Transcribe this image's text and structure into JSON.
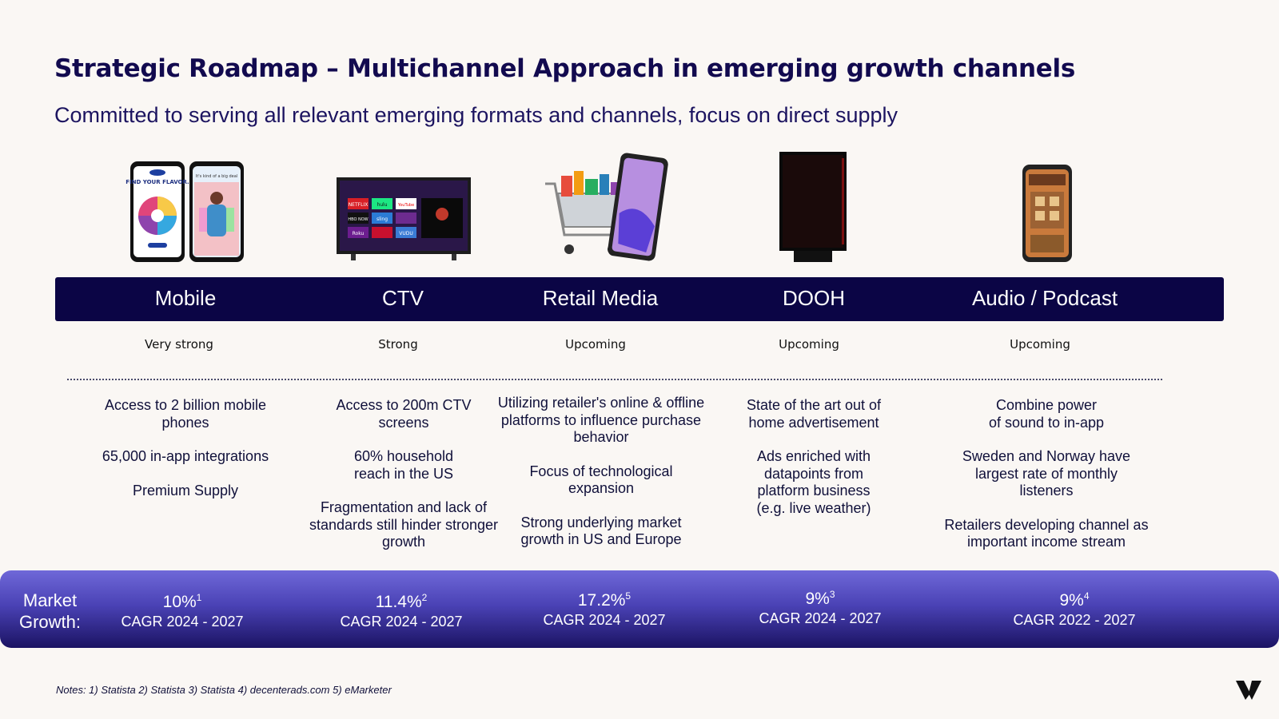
{
  "title": "Strategic Roadmap – Multichannel Approach in emerging growth channels",
  "subtitle": "Committed to serving all relevant emerging formats and channels, focus on direct supply",
  "channels": [
    {
      "label": "Mobile",
      "strength": "Very strong",
      "desc": [
        "Access to 2 billion mobile phones",
        "65,000 in-app integrations",
        "Premium Supply"
      ],
      "growth_value": "10%",
      "growth_note": "1",
      "growth_period": "CAGR 2024 - 2027",
      "image_text": [
        "FIND YOUR FLAVOR.",
        "It's kind of a big deal"
      ]
    },
    {
      "label": "CTV",
      "strength": "Strong",
      "desc": [
        "Access to 200m CTV screens",
        "60% household reach in the US",
        "Fragmentation and lack of standards still hinder stronger growth"
      ],
      "growth_value": "11.4%",
      "growth_note": "2",
      "growth_period": "CAGR 2024 - 2027",
      "image_text": [
        "NETFLIX",
        "hulu",
        "YouTube",
        "HBO NOW",
        "sling",
        "Roku",
        "VUDU"
      ]
    },
    {
      "label": "Retail Media",
      "strength": "Upcoming",
      "desc": [
        "Utilizing retailer's online & offline platforms to influence purchase behavior",
        "Focus of technological expansion",
        "Strong underlying market growth in US and Europe"
      ],
      "growth_value": "17.2%",
      "growth_note": "5",
      "growth_period": "CAGR 2024 - 2027"
    },
    {
      "label": "DOOH",
      "strength": "Upcoming",
      "desc": [
        "State of the art out of home advertisement",
        "Ads enriched with datapoints from platform business (e.g. live weather)"
      ],
      "growth_value": "9%",
      "growth_note": "3",
      "growth_period": "CAGR 2024 - 2027"
    },
    {
      "label": "Audio / Podcast",
      "strength": "Upcoming",
      "desc": [
        "Combine power of sound to in-app",
        "Sweden and Norway have largest rate of monthly listeners",
        "Retailers developing channel as important income stream"
      ],
      "growth_value": "9%",
      "growth_note": "4",
      "growth_period": "CAGR 2022 - 2027"
    }
  ],
  "market_growth_label": "Market Growth:",
  "notes": "Notes: 1) Statista 2) Statista 3) Statista 4) decenterads.com  5) eMarketer",
  "colors": {
    "title": "#120a4f",
    "band": "#0b0545",
    "growth_gradient_top": "#6f68d8",
    "growth_gradient_bottom": "#1b1363",
    "background": "#faf7f4"
  }
}
